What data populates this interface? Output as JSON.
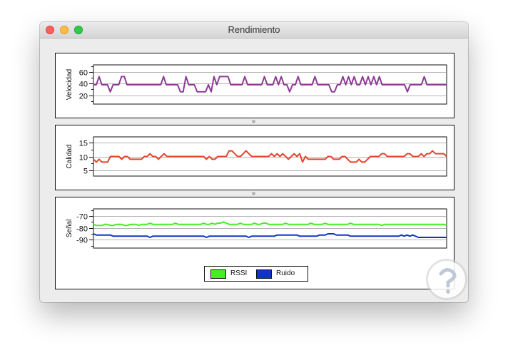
{
  "window": {
    "title": "Rendimiento"
  },
  "charts": [
    {
      "id": "velocidad",
      "ylabel": "Velocidad",
      "ylim": [
        5,
        72
      ],
      "ticks": [
        20,
        40,
        60
      ],
      "tick_labels": [
        "20",
        "40",
        "60"
      ],
      "color": "#8e3a96",
      "series": [
        {
          "values": [
            38,
            38,
            52,
            38,
            38,
            38,
            26,
            38,
            38,
            38,
            52,
            52,
            38,
            38,
            38,
            38,
            38,
            38,
            38,
            38,
            38,
            38,
            38,
            38,
            38,
            52,
            38,
            38,
            38,
            38,
            38,
            26,
            26,
            52,
            38,
            38,
            38,
            26,
            26,
            26,
            26,
            38,
            26,
            52,
            38,
            52,
            52,
            52,
            52,
            38,
            38,
            38,
            38,
            38,
            52,
            38,
            38,
            38,
            38,
            38,
            38,
            52,
            38,
            38,
            38,
            52,
            38,
            52,
            38,
            38,
            26,
            38,
            38,
            52,
            38,
            38,
            38,
            38,
            38,
            52,
            38,
            38,
            38,
            38,
            38,
            26,
            26,
            38,
            38,
            52,
            38,
            52,
            38,
            52,
            38,
            38,
            52,
            38,
            52,
            38,
            52,
            38,
            52,
            38,
            38,
            38,
            38,
            38,
            38,
            38,
            38,
            38,
            26,
            38,
            38,
            38,
            38,
            38,
            52,
            38,
            38,
            38,
            38,
            38,
            38,
            38,
            38
          ]
        }
      ]
    },
    {
      "id": "calidad",
      "ylabel": "Calidad",
      "ylim": [
        3,
        17
      ],
      "ticks": [
        5,
        10,
        15
      ],
      "tick_labels": [
        "5",
        "10",
        "15"
      ],
      "color": "#e2452c",
      "series": [
        {
          "values": [
            9,
            8,
            9,
            8,
            8,
            8,
            10,
            10,
            10,
            10,
            9,
            10,
            10,
            9,
            9,
            9,
            9,
            9,
            10,
            10,
            11,
            10,
            10,
            9,
            10,
            11,
            10,
            10,
            10,
            10,
            10,
            10,
            10,
            10,
            10,
            10,
            10,
            10,
            10,
            10,
            9,
            10,
            9,
            9,
            10,
            10,
            10,
            10,
            12,
            12,
            11,
            10,
            10,
            11,
            12,
            11,
            10,
            10,
            10,
            10,
            10,
            10,
            10,
            11,
            10,
            11,
            10,
            11,
            10,
            9,
            10,
            11,
            10,
            11,
            8,
            10,
            9,
            9,
            9,
            9,
            9,
            9,
            9,
            10,
            10,
            9,
            9,
            9,
            10,
            10,
            9,
            8,
            8,
            8,
            9,
            8,
            8,
            9,
            10,
            10,
            10,
            10,
            11,
            11,
            10,
            10,
            10,
            10,
            10,
            10,
            10,
            11,
            11,
            10,
            10,
            10,
            11,
            10,
            11,
            11,
            12,
            11,
            11,
            11,
            11,
            10
          ]
        }
      ]
    },
    {
      "id": "senal",
      "ylabel": "Señal",
      "ylim": [
        -97,
        -64
      ],
      "ticks": [
        -90,
        -80,
        -70
      ],
      "tick_labels": [
        "-90",
        "-80",
        "-70"
      ],
      "series": [
        {
          "name": "RSSI",
          "color": "#44ee22",
          "values": [
            -77,
            -78,
            -78,
            -78,
            -77,
            -77,
            -78,
            -78,
            -77,
            -77,
            -77,
            -78,
            -78,
            -77,
            -77,
            -77,
            -78,
            -77,
            -77,
            -77,
            -76,
            -77,
            -77,
            -77,
            -77,
            -77,
            -77,
            -77,
            -77,
            -76,
            -77,
            -77,
            -77,
            -77,
            -77,
            -77,
            -77,
            -77,
            -77,
            -76,
            -77,
            -77,
            -76,
            -77,
            -76,
            -76,
            -75,
            -76,
            -77,
            -77,
            -77,
            -77,
            -76,
            -77,
            -77,
            -77,
            -77,
            -76,
            -77,
            -77,
            -76,
            -76,
            -77,
            -77,
            -77,
            -77,
            -77,
            -77,
            -76,
            -77,
            -77,
            -77,
            -77,
            -77,
            -77,
            -77,
            -77,
            -76,
            -77,
            -77,
            -77,
            -77,
            -76,
            -77,
            -77,
            -77,
            -77,
            -77,
            -77,
            -77,
            -77,
            -76,
            -77,
            -77,
            -77,
            -77,
            -77,
            -77,
            -77,
            -77,
            -77,
            -77,
            -78,
            -77,
            -77,
            -77,
            -77,
            -77,
            -77,
            -77,
            -77,
            -77,
            -77,
            -77,
            -77,
            -77,
            -77,
            -77,
            -77,
            -77,
            -77,
            -77,
            -77,
            -77,
            -77,
            -78
          ]
        },
        {
          "name": "Ruido",
          "color": "#1133cc",
          "values": [
            -85,
            -86,
            -86,
            -86,
            -86,
            -86,
            -86,
            -87,
            -87,
            -87,
            -87,
            -87,
            -87,
            -87,
            -87,
            -87,
            -87,
            -87,
            -87,
            -87,
            -88,
            -87,
            -87,
            -87,
            -87,
            -87,
            -87,
            -87,
            -87,
            -87,
            -87,
            -87,
            -87,
            -87,
            -87,
            -87,
            -87,
            -87,
            -87,
            -87,
            -88,
            -87,
            -87,
            -87,
            -87,
            -87,
            -87,
            -87,
            -87,
            -87,
            -87,
            -87,
            -87,
            -87,
            -87,
            -88,
            -87,
            -87,
            -87,
            -87,
            -87,
            -87,
            -87,
            -87,
            -87,
            -86,
            -86,
            -86,
            -86,
            -86,
            -86,
            -86,
            -86,
            -87,
            -87,
            -87,
            -87,
            -87,
            -87,
            -87,
            -86,
            -86,
            -86,
            -85,
            -85,
            -85,
            -86,
            -86,
            -86,
            -86,
            -86,
            -87,
            -87,
            -87,
            -87,
            -87,
            -87,
            -87,
            -87,
            -87,
            -87,
            -87,
            -87,
            -87,
            -87,
            -87,
            -87,
            -87,
            -87,
            -86,
            -87,
            -86,
            -87,
            -86,
            -87,
            -88,
            -88,
            -88,
            -88,
            -88,
            -88,
            -88,
            -88,
            -88,
            -88,
            -88
          ]
        }
      ]
    }
  ],
  "legend": {
    "items": [
      {
        "label": "RSSI",
        "color": "#44ee22"
      },
      {
        "label": "Ruido",
        "color": "#1133cc"
      }
    ]
  }
}
